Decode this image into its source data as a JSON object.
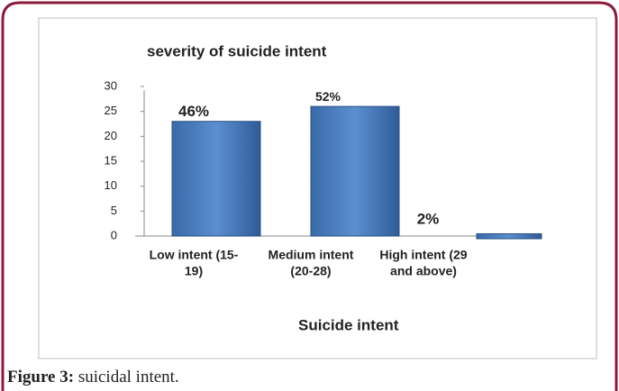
{
  "chart_data": {
    "type": "bar",
    "title": "severity of suicide intent",
    "categories": [
      [
        "Low intent (15-",
        "19)"
      ],
      [
        "Medium intent",
        "(20-28)"
      ],
      [
        "High intent (29",
        "and above)"
      ]
    ],
    "values": [
      23,
      26,
      1
    ],
    "annotations": [
      "46%",
      "52%",
      "2%"
    ],
    "color": "#4f81bd",
    "ylim": [
      0,
      30
    ],
    "yticks": [
      0,
      5,
      10,
      15,
      20,
      25,
      30
    ],
    "xlabel": "Suicide intent",
    "caption": {
      "label": "Figure 3:",
      "text": "suicidal intent."
    }
  }
}
